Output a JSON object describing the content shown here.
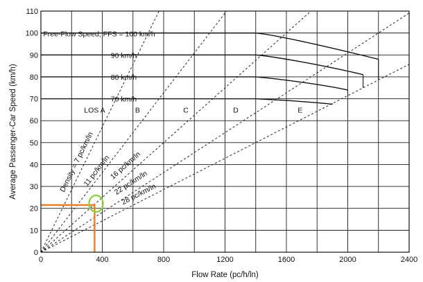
{
  "chart_data": {
    "type": "line",
    "title": "",
    "xlabel": "Flow Rate (pc/h/ln)",
    "ylabel": "Average Passenger-Car Speed (km/h)",
    "xlim": [
      0,
      2400
    ],
    "ylim": [
      0,
      110
    ],
    "x_ticks": [
      "0",
      "400",
      "800",
      "1200",
      "1600",
      "2000",
      "2400"
    ],
    "y_ticks": [
      "0",
      "10",
      "20",
      "30",
      "40",
      "50",
      "60",
      "70",
      "80",
      "90",
      "100",
      "110"
    ],
    "grid": true,
    "ffs_label": "Free-Flow Speed, FFS = 100 km/h",
    "speed_curves": [
      {
        "label": "Free-Flow Speed, FFS = 100 km/h",
        "ffs": 100,
        "points": [
          [
            0,
            100
          ],
          [
            1400,
            100
          ],
          [
            1500,
            99.4
          ],
          [
            1800,
            95
          ],
          [
            2200,
            88
          ]
        ]
      },
      {
        "label": "90 km/h",
        "ffs": 90,
        "points": [
          [
            0,
            90
          ],
          [
            1400,
            90
          ],
          [
            1500,
            89.4
          ],
          [
            1800,
            86
          ],
          [
            2100,
            81
          ]
        ]
      },
      {
        "label": "80 km/h",
        "ffs": 80,
        "points": [
          [
            0,
            80
          ],
          [
            1400,
            80
          ],
          [
            1500,
            79.4
          ],
          [
            1800,
            77
          ],
          [
            2000,
            74
          ]
        ]
      },
      {
        "label": "70 km/h",
        "ffs": 70,
        "points": [
          [
            0,
            70
          ],
          [
            1400,
            70
          ],
          [
            1500,
            69.6
          ],
          [
            1700,
            69
          ],
          [
            1900,
            67.5
          ]
        ]
      }
    ],
    "density_lines": [
      {
        "label": "Density = 7 pc/km/ln",
        "density": 7
      },
      {
        "label": "11 pc/km/ln",
        "density": 11
      },
      {
        "label": "16 pc/km/ln",
        "density": 16
      },
      {
        "label": "22 pc/km/ln",
        "density": 22
      },
      {
        "label": "28 pc/km/ln",
        "density": 28
      }
    ],
    "los_labels": [
      {
        "text": "LOS A",
        "x": 350,
        "y": 65
      },
      {
        "text": "B",
        "x": 630,
        "y": 65
      },
      {
        "text": "C",
        "x": 945,
        "y": 65
      },
      {
        "text": "D",
        "x": 1270,
        "y": 65
      },
      {
        "text": "E",
        "x": 1690,
        "y": 65
      }
    ],
    "highlight": {
      "flow": 350,
      "speed": 21.5,
      "marker": "ellipse",
      "color": "#f07a1a",
      "marker_color": "#8fd13f"
    }
  }
}
